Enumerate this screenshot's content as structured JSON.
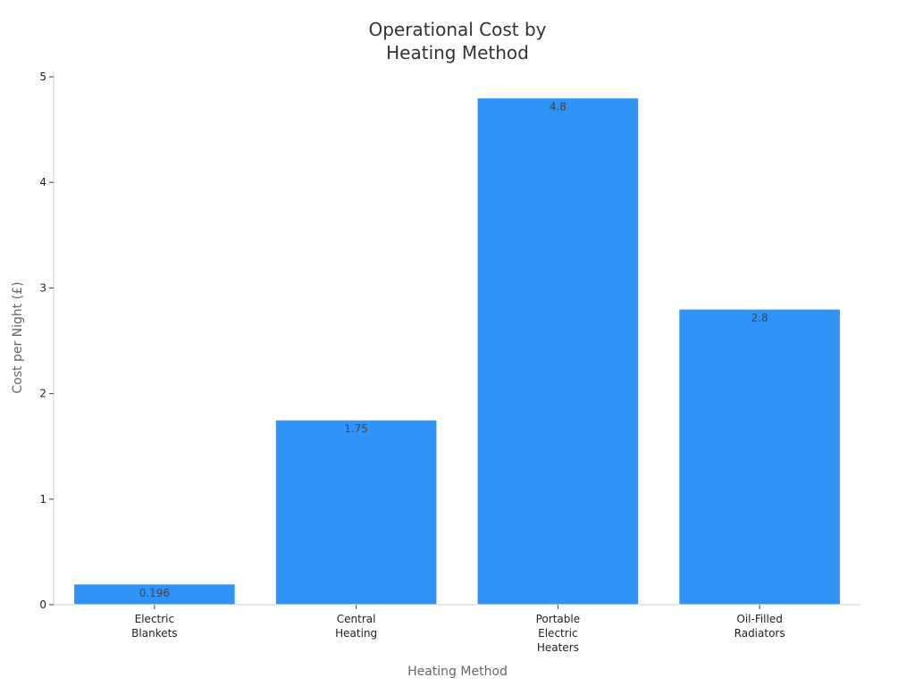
{
  "chart_data": {
    "type": "bar",
    "title_lines": [
      "Operational Cost by",
      "Heating Method"
    ],
    "xlabel": "Heating Method",
    "ylabel": "Cost per Night (£)",
    "categories": [
      [
        "Electric",
        "Blankets"
      ],
      [
        "Central",
        "Heating"
      ],
      [
        "Portable",
        "Electric",
        "Heaters"
      ],
      [
        "Oil-Filled",
        "Radiators"
      ]
    ],
    "values": [
      0.196,
      1.75,
      4.8,
      2.8
    ],
    "data_labels": [
      "0.196",
      "1.75",
      "4.8",
      "2.8"
    ],
    "ylim": [
      0,
      5
    ],
    "yticks": [
      0,
      1,
      2,
      3,
      4,
      5
    ],
    "bar_color": "#3093f8",
    "grid": false,
    "legend": "none"
  }
}
